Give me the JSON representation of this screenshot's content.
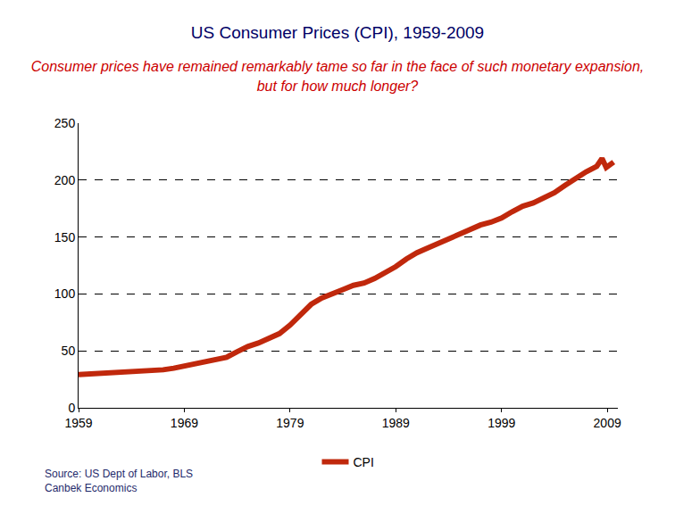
{
  "chart_data": {
    "type": "line",
    "title": "US Consumer Prices (CPI), 1959-2009",
    "subtitle": "Consumer prices have remained remarkably tame so far in the face of such monetary expansion, but for how much longer?",
    "annotations": [
      "Source: US Dept of Labor, BLS",
      "Canbek Economics"
    ],
    "x": [
      1959,
      1960,
      1961,
      1962,
      1963,
      1964,
      1965,
      1966,
      1967,
      1968,
      1969,
      1970,
      1971,
      1972,
      1973,
      1974,
      1975,
      1976,
      1977,
      1978,
      1979,
      1980,
      1981,
      1982,
      1983,
      1984,
      1985,
      1986,
      1987,
      1988,
      1989,
      1990,
      1991,
      1992,
      1993,
      1994,
      1995,
      1996,
      1997,
      1998,
      1999,
      2000,
      2001,
      2002,
      2003,
      2004,
      2005,
      2006,
      2007,
      2008,
      2008.5,
      2008.9,
      2009.2,
      2009.6
    ],
    "series": [
      {
        "name": "CPI",
        "color": "#c0280c",
        "line_style": "solid",
        "values": [
          29.1,
          29.6,
          29.9,
          30.2,
          30.6,
          31.0,
          31.5,
          32.4,
          33.4,
          34.8,
          36.7,
          38.8,
          40.5,
          41.8,
          44.4,
          49.3,
          53.8,
          56.9,
          60.6,
          65.2,
          72.6,
          82.4,
          90.9,
          96.5,
          99.6,
          103.9,
          107.6,
          109.6,
          113.6,
          118.3,
          124.0,
          130.7,
          136.2,
          140.3,
          144.5,
          148.2,
          152.4,
          156.9,
          160.5,
          163.0,
          166.6,
          172.2,
          177.1,
          179.9,
          184.0,
          188.9,
          195.3,
          201.6,
          207.3,
          212.0,
          219.0,
          211.0,
          213.0,
          215.8
        ]
      }
    ],
    "xlim": [
      1959,
      2010
    ],
    "xticks": [
      1959,
      1969,
      1979,
      1989,
      1999,
      2009
    ],
    "ylim": [
      0,
      250
    ],
    "yticks": [
      0,
      50,
      100,
      150,
      200,
      250
    ],
    "grid": true,
    "legend": "bottom"
  }
}
